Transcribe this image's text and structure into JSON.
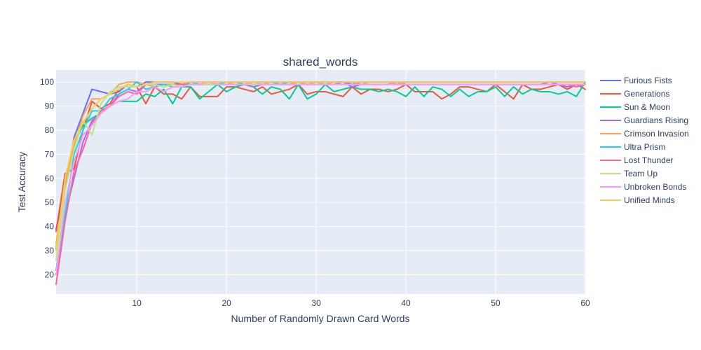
{
  "chart_data": {
    "type": "line",
    "title": "shared_words",
    "xlabel": "Number of Randomly Drawn Card Words",
    "ylabel": "Test Accuracy",
    "xlim": [
      1,
      60
    ],
    "ylim": [
      12,
      105
    ],
    "xticks": [
      10,
      20,
      30,
      40,
      50,
      60
    ],
    "yticks": [
      20,
      30,
      40,
      50,
      60,
      70,
      80,
      90,
      100
    ],
    "grid": true,
    "legend_position": "right",
    "series": [
      {
        "name": "Furious Fists",
        "color": "#636efa",
        "x": [
          1,
          2,
          3,
          4,
          5,
          6,
          7,
          8,
          9,
          10,
          11,
          12,
          13,
          14,
          15,
          16,
          17,
          18,
          19,
          20,
          21,
          22,
          23,
          24,
          25,
          26,
          27,
          28,
          29,
          30,
          31,
          32,
          33,
          34,
          35,
          36,
          37,
          38,
          39,
          40,
          41,
          42,
          43,
          44,
          45,
          46,
          47,
          48,
          49,
          50,
          51,
          52,
          53,
          54,
          55,
          56,
          57,
          58,
          59,
          60
        ],
        "y": [
          39,
          55,
          77,
          87,
          97,
          96,
          95,
          96,
          99,
          98,
          100,
          100,
          100,
          100,
          99,
          100,
          100,
          100,
          100,
          100,
          100,
          100,
          100,
          100,
          100,
          100,
          100,
          100,
          100,
          100,
          100,
          100,
          100,
          99,
          100,
          100,
          100,
          100,
          100,
          100,
          100,
          100,
          100,
          100,
          100,
          100,
          100,
          100,
          100,
          100,
          100,
          100,
          100,
          100,
          100,
          100,
          100,
          100,
          100,
          100
        ]
      },
      {
        "name": "Generations",
        "color": "#ef553b",
        "x": [
          1,
          2,
          3,
          4,
          5,
          6,
          7,
          8,
          9,
          10,
          11,
          12,
          13,
          14,
          15,
          16,
          17,
          18,
          19,
          20,
          21,
          22,
          23,
          24,
          25,
          26,
          27,
          28,
          29,
          30,
          31,
          32,
          33,
          34,
          35,
          36,
          37,
          38,
          39,
          40,
          41,
          42,
          43,
          44,
          45,
          46,
          47,
          48,
          49,
          50,
          51,
          52,
          53,
          54,
          55,
          56,
          57,
          58,
          59,
          60
        ],
        "y": [
          38,
          62,
          64,
          80,
          92,
          89,
          91,
          97,
          99,
          98,
          91,
          98,
          95,
          95,
          93,
          98,
          94,
          94,
          94,
          98,
          98,
          97,
          96,
          98,
          95,
          96,
          97,
          99,
          95,
          96,
          96,
          95,
          94,
          98,
          95,
          97,
          97,
          96,
          97,
          99,
          96,
          96,
          96,
          93,
          95,
          98,
          98,
          97,
          96,
          99,
          96,
          93,
          99,
          97,
          97,
          98,
          99,
          97,
          99,
          97
        ]
      },
      {
        "name": "Sun & Moon",
        "color": "#00cc96",
        "x": [
          1,
          2,
          3,
          4,
          5,
          6,
          7,
          8,
          9,
          10,
          11,
          12,
          13,
          14,
          15,
          16,
          17,
          18,
          19,
          20,
          21,
          22,
          23,
          24,
          25,
          26,
          27,
          28,
          29,
          30,
          31,
          32,
          33,
          34,
          35,
          36,
          37,
          38,
          39,
          40,
          41,
          42,
          43,
          44,
          45,
          46,
          47,
          48,
          49,
          50,
          51,
          52,
          53,
          54,
          55,
          56,
          57,
          58,
          59,
          60
        ],
        "y": [
          31,
          58,
          74,
          82,
          85,
          87,
          90,
          92,
          92,
          92,
          95,
          94,
          97,
          91,
          98,
          98,
          93,
          96,
          99,
          96,
          98,
          99,
          98,
          95,
          98,
          97,
          93,
          99,
          93,
          95,
          99,
          96,
          97,
          98,
          97,
          97,
          96,
          97,
          96,
          94,
          98,
          94,
          98,
          97,
          94,
          97,
          94,
          96,
          96,
          98,
          94,
          98,
          95,
          97,
          96,
          96,
          95,
          96,
          94,
          100
        ]
      },
      {
        "name": "Guardians Rising",
        "color": "#ab63fa",
        "x": [
          1,
          2,
          3,
          4,
          5,
          6,
          7,
          8,
          9,
          10,
          11,
          12,
          13,
          14,
          15,
          16,
          17,
          18,
          19,
          20,
          21,
          22,
          23,
          24,
          25,
          26,
          27,
          28,
          29,
          30,
          31,
          32,
          33,
          34,
          35,
          36,
          37,
          38,
          39,
          40,
          41,
          42,
          43,
          44,
          45,
          46,
          47,
          48,
          49,
          50,
          51,
          52,
          53,
          54,
          55,
          56,
          57,
          58,
          59,
          60
        ],
        "y": [
          20,
          45,
          60,
          75,
          84,
          87,
          90,
          95,
          97,
          96,
          99,
          99,
          99,
          99,
          99,
          99,
          99,
          99,
          99,
          99,
          99,
          99,
          98,
          99,
          99,
          99,
          99,
          100,
          99,
          99,
          99,
          99,
          100,
          98,
          99,
          99,
          99,
          99,
          100,
          99,
          99,
          99,
          99,
          99,
          99,
          99,
          99,
          99,
          99,
          99,
          99,
          99,
          99,
          99,
          99,
          100,
          99,
          98,
          99,
          99
        ]
      },
      {
        "name": "Crimson Invasion",
        "color": "#ffa15a",
        "x": [
          1,
          2,
          3,
          4,
          5,
          6,
          7,
          8,
          9,
          10,
          11,
          12,
          13,
          14,
          15,
          16,
          17,
          18,
          19,
          20,
          21,
          22,
          23,
          24,
          25,
          26,
          27,
          28,
          29,
          30,
          31,
          32,
          33,
          34,
          35,
          36,
          37,
          38,
          39,
          40,
          41,
          42,
          43,
          44,
          45,
          46,
          47,
          48,
          49,
          50,
          51,
          52,
          53,
          54,
          55,
          56,
          57,
          58,
          59,
          60
        ],
        "y": [
          33,
          58,
          74,
          86,
          93,
          93,
          95,
          99,
          100,
          100,
          99,
          98,
          99,
          99,
          99,
          100,
          99,
          99,
          99,
          99,
          100,
          100,
          99,
          99,
          100,
          99,
          99,
          100,
          99,
          100,
          99,
          100,
          100,
          100,
          99,
          100,
          100,
          100,
          99,
          100,
          100,
          100,
          100,
          100,
          100,
          100,
          100,
          100,
          100,
          100,
          100,
          100,
          100,
          100,
          100,
          100,
          100,
          100,
          100,
          100
        ]
      },
      {
        "name": "Ultra Prism",
        "color": "#19d3f3",
        "x": [
          1,
          2,
          3,
          4,
          5,
          6,
          7,
          8,
          9,
          10,
          11,
          12,
          13,
          14,
          15,
          16,
          17,
          18,
          19,
          20,
          21,
          22,
          23,
          24,
          25,
          26,
          27,
          28,
          29,
          30,
          31,
          32,
          33,
          34,
          35,
          36,
          37,
          38,
          39,
          40,
          41,
          42,
          43,
          44,
          45,
          46,
          47,
          48,
          49,
          50,
          51,
          52,
          53,
          54,
          55,
          56,
          57,
          58,
          59,
          60
        ],
        "y": [
          22,
          45,
          70,
          80,
          88,
          88,
          93,
          95,
          97,
          100,
          97,
          98,
          99,
          98,
          98,
          100,
          99,
          100,
          99,
          100,
          100,
          99,
          100,
          100,
          100,
          99,
          100,
          100,
          100,
          100,
          100,
          100,
          100,
          100,
          100,
          100,
          100,
          100,
          100,
          100,
          100,
          100,
          100,
          100,
          100,
          100,
          100,
          100,
          100,
          100,
          100,
          100,
          100,
          100,
          100,
          100,
          100,
          100,
          100,
          100
        ]
      },
      {
        "name": "Lost Thunder",
        "color": "#ff6692",
        "x": [
          1,
          2,
          3,
          4,
          5,
          6,
          7,
          8,
          9,
          10,
          11,
          12,
          13,
          14,
          15,
          16,
          17,
          18,
          19,
          20,
          21,
          22,
          23,
          24,
          25,
          26,
          27,
          28,
          29,
          30,
          31,
          32,
          33,
          34,
          35,
          36,
          37,
          38,
          39,
          40,
          41,
          42,
          43,
          44,
          45,
          46,
          47,
          48,
          49,
          50,
          51,
          52,
          53,
          54,
          55,
          56,
          57,
          58,
          59,
          60
        ],
        "y": [
          16,
          42,
          63,
          72,
          83,
          88,
          90,
          94,
          96,
          95,
          99,
          99,
          98,
          99,
          99,
          99,
          99,
          99,
          99,
          99,
          99,
          99,
          99,
          99,
          99,
          99,
          99,
          99,
          99,
          99,
          99,
          99,
          99,
          99,
          99,
          99,
          99,
          99,
          99,
          99,
          99,
          99,
          99,
          99,
          99,
          99,
          99,
          99,
          99,
          99,
          99,
          99,
          99,
          99,
          99,
          99,
          99,
          99,
          98,
          99
        ]
      },
      {
        "name": "Team Up",
        "color": "#b6e880",
        "x": [
          1,
          2,
          3,
          4,
          5,
          6,
          7,
          8,
          9,
          10,
          11,
          12,
          13,
          14,
          15,
          16,
          17,
          18,
          19,
          20,
          21,
          22,
          23,
          24,
          25,
          26,
          27,
          28,
          29,
          30,
          31,
          32,
          33,
          34,
          35,
          36,
          37,
          38,
          39,
          40,
          41,
          42,
          43,
          44,
          45,
          46,
          47,
          48,
          49,
          50,
          51,
          52,
          53,
          54,
          55,
          56,
          57,
          58,
          59,
          60
        ],
        "y": [
          26,
          55,
          72,
          84,
          78,
          91,
          96,
          98,
          98,
          98,
          99,
          99,
          98,
          99,
          98,
          99,
          99,
          99,
          99,
          99,
          99,
          99,
          99,
          99,
          99,
          99,
          99,
          99,
          99,
          99,
          99,
          99,
          99,
          99,
          99,
          99,
          99,
          99,
          99,
          99,
          99,
          99,
          99,
          99,
          99,
          99,
          99,
          99,
          99,
          99,
          99,
          99,
          99,
          99,
          99,
          99,
          99,
          99,
          99,
          99
        ]
      },
      {
        "name": "Unbroken Bonds",
        "color": "#ff97ff",
        "x": [
          1,
          2,
          3,
          4,
          5,
          6,
          7,
          8,
          9,
          10,
          11,
          12,
          13,
          14,
          15,
          16,
          17,
          18,
          19,
          20,
          21,
          22,
          23,
          24,
          25,
          26,
          27,
          28,
          29,
          30,
          31,
          32,
          33,
          34,
          35,
          36,
          37,
          38,
          39,
          40,
          41,
          42,
          43,
          44,
          45,
          46,
          47,
          48,
          49,
          50,
          51,
          52,
          53,
          54,
          55,
          56,
          57,
          58,
          59,
          60
        ],
        "y": [
          20,
          50,
          67,
          78,
          82,
          87,
          90,
          92,
          93,
          96,
          96,
          98,
          96,
          98,
          98,
          99,
          99,
          100,
          99,
          99,
          99,
          99,
          100,
          99,
          99,
          99,
          99,
          99,
          99,
          99,
          99,
          99,
          99,
          99,
          99,
          99,
          99,
          99,
          99,
          99,
          99,
          99,
          99,
          99,
          99,
          99,
          99,
          99,
          99,
          99,
          99,
          99,
          99,
          99,
          99,
          99,
          99,
          99,
          99,
          99
        ]
      },
      {
        "name": "Unified Minds",
        "color": "#fecb52",
        "x": [
          1,
          2,
          3,
          4,
          5,
          6,
          7,
          8,
          9,
          10,
          11,
          12,
          13,
          14,
          15,
          16,
          17,
          18,
          19,
          20,
          21,
          22,
          23,
          24,
          25,
          26,
          27,
          28,
          29,
          30,
          31,
          32,
          33,
          34,
          35,
          36,
          37,
          38,
          39,
          40,
          41,
          42,
          43,
          44,
          45,
          46,
          47,
          48,
          49,
          50,
          51,
          52,
          53,
          54,
          55,
          56,
          57,
          58,
          59,
          60
        ],
        "y": [
          30,
          60,
          76,
          83,
          89,
          93,
          95,
          97,
          99,
          98,
          99,
          100,
          100,
          100,
          100,
          100,
          100,
          100,
          100,
          100,
          100,
          100,
          100,
          100,
          100,
          100,
          100,
          100,
          100,
          100,
          100,
          100,
          100,
          100,
          100,
          100,
          100,
          100,
          100,
          100,
          100,
          100,
          100,
          100,
          100,
          100,
          100,
          100,
          100,
          100,
          100,
          100,
          100,
          100,
          100,
          100,
          100,
          100,
          100,
          100
        ]
      }
    ]
  }
}
